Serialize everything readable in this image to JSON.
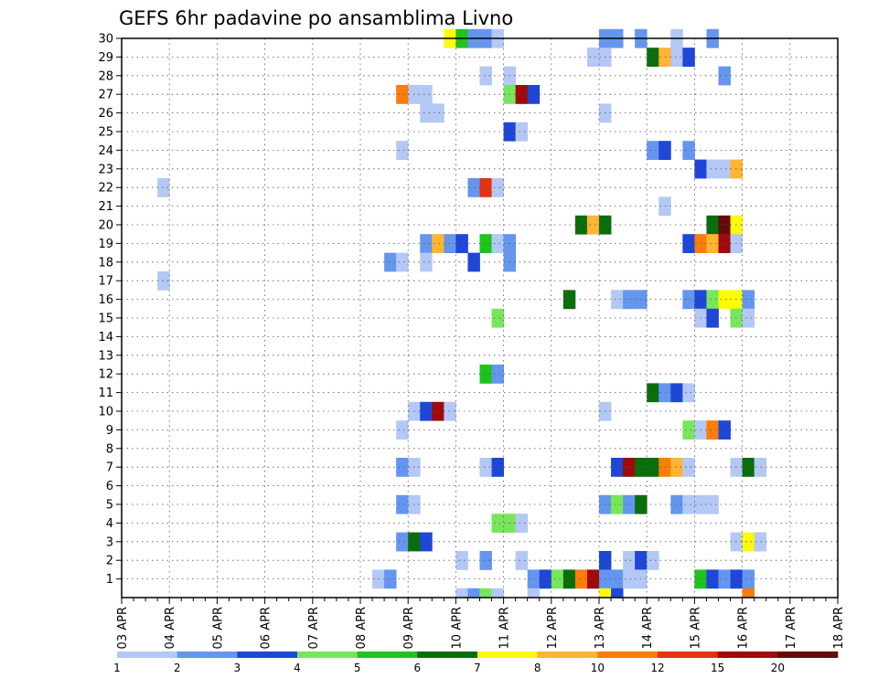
{
  "chart_data": {
    "type": "heatmap",
    "title": "GEFS 6hr padavine po ansamblima Livno",
    "xlabel": "",
    "ylabel": "",
    "x_ticks": [
      "03 APR",
      "04 APR",
      "05 APR",
      "06 APR",
      "07 APR",
      "08 APR",
      "09 APR",
      "10 APR",
      "11 APR",
      "12 APR",
      "13 APR",
      "14 APR",
      "15 APR",
      "16 APR",
      "17 APR",
      "18 APR"
    ],
    "x_range_days": [
      0,
      15
    ],
    "y_ticks": [
      1,
      2,
      3,
      4,
      5,
      6,
      7,
      8,
      9,
      10,
      11,
      12,
      13,
      14,
      15,
      16,
      17,
      18,
      19,
      20,
      21,
      22,
      23,
      24,
      25,
      26,
      27,
      28,
      29,
      30
    ],
    "y_range": [
      0,
      30
    ],
    "grid": true,
    "colorbar": {
      "labels": [
        "1",
        "2",
        "3",
        "4",
        "5",
        "6",
        "7",
        "8",
        "10",
        "12",
        "15",
        "20"
      ],
      "colors": [
        "#b4c8f5",
        "#6496f0",
        "#1e46d7",
        "#78e65a",
        "#1ec31e",
        "#0a6e0a",
        "#fafa0a",
        "#ffb432",
        "#fa7d0a",
        "#e6320f",
        "#a00a0a",
        "#640a0a"
      ]
    },
    "cells": [
      [
        27,
        30,
        6
      ],
      [
        28,
        30,
        4
      ],
      [
        29,
        30,
        1
      ],
      [
        30,
        30,
        1
      ],
      [
        31,
        30,
        0
      ],
      [
        40,
        30,
        1
      ],
      [
        41,
        30,
        1
      ],
      [
        43,
        30,
        1
      ],
      [
        46,
        30,
        0
      ],
      [
        49,
        30,
        1
      ],
      [
        39,
        29,
        0
      ],
      [
        40,
        29,
        0
      ],
      [
        44,
        29,
        5
      ],
      [
        45,
        29,
        7
      ],
      [
        46,
        29,
        0
      ],
      [
        47,
        29,
        2
      ],
      [
        30,
        28,
        0
      ],
      [
        32,
        28,
        0
      ],
      [
        50,
        28,
        1
      ],
      [
        23,
        27,
        8
      ],
      [
        24,
        27,
        0
      ],
      [
        25,
        27,
        0
      ],
      [
        32,
        27,
        3
      ],
      [
        33,
        27,
        10
      ],
      [
        34,
        27,
        2
      ],
      [
        25,
        26,
        0
      ],
      [
        26,
        26,
        0
      ],
      [
        40,
        26,
        0
      ],
      [
        32,
        25,
        2
      ],
      [
        33,
        25,
        0
      ],
      [
        23,
        24,
        0
      ],
      [
        44,
        24,
        1
      ],
      [
        45,
        24,
        2
      ],
      [
        47,
        24,
        1
      ],
      [
        48,
        23,
        2
      ],
      [
        49,
        23,
        0
      ],
      [
        50,
        23,
        0
      ],
      [
        51,
        23,
        7
      ],
      [
        3,
        22,
        0
      ],
      [
        29,
        22,
        1
      ],
      [
        30,
        22,
        9
      ],
      [
        31,
        22,
        0
      ],
      [
        45,
        21,
        0
      ],
      [
        38,
        20,
        5
      ],
      [
        39,
        20,
        7
      ],
      [
        40,
        20,
        5
      ],
      [
        49,
        20,
        5
      ],
      [
        50,
        20,
        11
      ],
      [
        51,
        20,
        6
      ],
      [
        25,
        19,
        1
      ],
      [
        26,
        19,
        7
      ],
      [
        27,
        19,
        1
      ],
      [
        28,
        19,
        2
      ],
      [
        30,
        19,
        4
      ],
      [
        31,
        19,
        0
      ],
      [
        32,
        19,
        1
      ],
      [
        47,
        19,
        2
      ],
      [
        48,
        19,
        8
      ],
      [
        49,
        19,
        7
      ],
      [
        50,
        19,
        10
      ],
      [
        51,
        19,
        0
      ],
      [
        22,
        18,
        1
      ],
      [
        23,
        18,
        0
      ],
      [
        25,
        18,
        0
      ],
      [
        29,
        18,
        2
      ],
      [
        32,
        18,
        1
      ],
      [
        3,
        17,
        0
      ],
      [
        37,
        16,
        5
      ],
      [
        41,
        16,
        0
      ],
      [
        42,
        16,
        1
      ],
      [
        43,
        16,
        1
      ],
      [
        47,
        16,
        1
      ],
      [
        48,
        16,
        2
      ],
      [
        49,
        16,
        3
      ],
      [
        50,
        16,
        6
      ],
      [
        51,
        16,
        6
      ],
      [
        52,
        16,
        1
      ],
      [
        31,
        15,
        3
      ],
      [
        48,
        15,
        0
      ],
      [
        49,
        15,
        2
      ],
      [
        51,
        15,
        3
      ],
      [
        52,
        15,
        0
      ],
      [
        30,
        12,
        4
      ],
      [
        31,
        12,
        1
      ],
      [
        44,
        11,
        5
      ],
      [
        45,
        11,
        1
      ],
      [
        46,
        11,
        2
      ],
      [
        47,
        11,
        0
      ],
      [
        24,
        10,
        0
      ],
      [
        25,
        10,
        2
      ],
      [
        26,
        10,
        10
      ],
      [
        27,
        10,
        0
      ],
      [
        40,
        10,
        0
      ],
      [
        23,
        9,
        0
      ],
      [
        47,
        9,
        3
      ],
      [
        48,
        9,
        0
      ],
      [
        49,
        9,
        8
      ],
      [
        50,
        9,
        2
      ],
      [
        23,
        7,
        1
      ],
      [
        24,
        7,
        0
      ],
      [
        30,
        7,
        0
      ],
      [
        31,
        7,
        2
      ],
      [
        41,
        7,
        2
      ],
      [
        42,
        7,
        10
      ],
      [
        43,
        7,
        5
      ],
      [
        44,
        7,
        5
      ],
      [
        45,
        7,
        8
      ],
      [
        46,
        7,
        7
      ],
      [
        47,
        7,
        0
      ],
      [
        51,
        7,
        0
      ],
      [
        52,
        7,
        5
      ],
      [
        53,
        7,
        0
      ],
      [
        23,
        5,
        1
      ],
      [
        24,
        5,
        0
      ],
      [
        40,
        5,
        1
      ],
      [
        41,
        5,
        3
      ],
      [
        42,
        5,
        1
      ],
      [
        43,
        5,
        5
      ],
      [
        46,
        5,
        1
      ],
      [
        47,
        5,
        0
      ],
      [
        48,
        5,
        0
      ],
      [
        49,
        5,
        0
      ],
      [
        31,
        4,
        3
      ],
      [
        32,
        4,
        3
      ],
      [
        33,
        4,
        0
      ],
      [
        23,
        3,
        1
      ],
      [
        24,
        3,
        5
      ],
      [
        25,
        3,
        2
      ],
      [
        51,
        3,
        0
      ],
      [
        52,
        3,
        6
      ],
      [
        53,
        3,
        0
      ],
      [
        28,
        2,
        0
      ],
      [
        30,
        2,
        1
      ],
      [
        33,
        2,
        0
      ],
      [
        40,
        2,
        2
      ],
      [
        42,
        2,
        0
      ],
      [
        43,
        2,
        2
      ],
      [
        44,
        2,
        0
      ],
      [
        21,
        1,
        0
      ],
      [
        22,
        1,
        1
      ],
      [
        34,
        1,
        1
      ],
      [
        35,
        1,
        2
      ],
      [
        36,
        1,
        3
      ],
      [
        37,
        1,
        5
      ],
      [
        38,
        1,
        8
      ],
      [
        39,
        1,
        10
      ],
      [
        40,
        1,
        1
      ],
      [
        41,
        1,
        1
      ],
      [
        42,
        1,
        0
      ],
      [
        43,
        1,
        0
      ],
      [
        48,
        1,
        4
      ],
      [
        49,
        1,
        2
      ],
      [
        50,
        1,
        1
      ],
      [
        51,
        1,
        2
      ],
      [
        52,
        1,
        1
      ],
      [
        28,
        0,
        0
      ],
      [
        29,
        0,
        1
      ],
      [
        30,
        0,
        3
      ],
      [
        31,
        0,
        0
      ],
      [
        34,
        0,
        0
      ],
      [
        40,
        0,
        6
      ],
      [
        41,
        0,
        2
      ],
      [
        52,
        0,
        8
      ]
    ]
  }
}
